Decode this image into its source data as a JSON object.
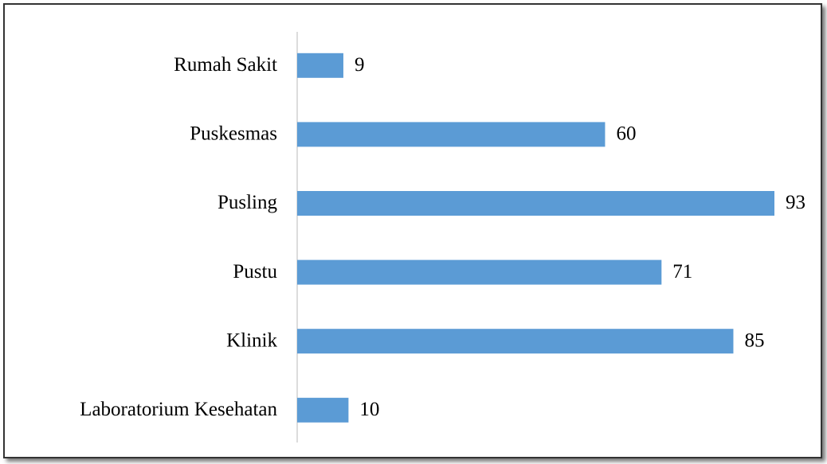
{
  "chart_data": {
    "type": "bar",
    "orientation": "horizontal",
    "categories": [
      "Rumah Sakit",
      "Puskesmas",
      "Pusling",
      "Pustu",
      "Klinik",
      "Laboratorium Kesehatan"
    ],
    "values": [
      9,
      60,
      93,
      71,
      85,
      10
    ],
    "color": "#5b9bd5"
  }
}
